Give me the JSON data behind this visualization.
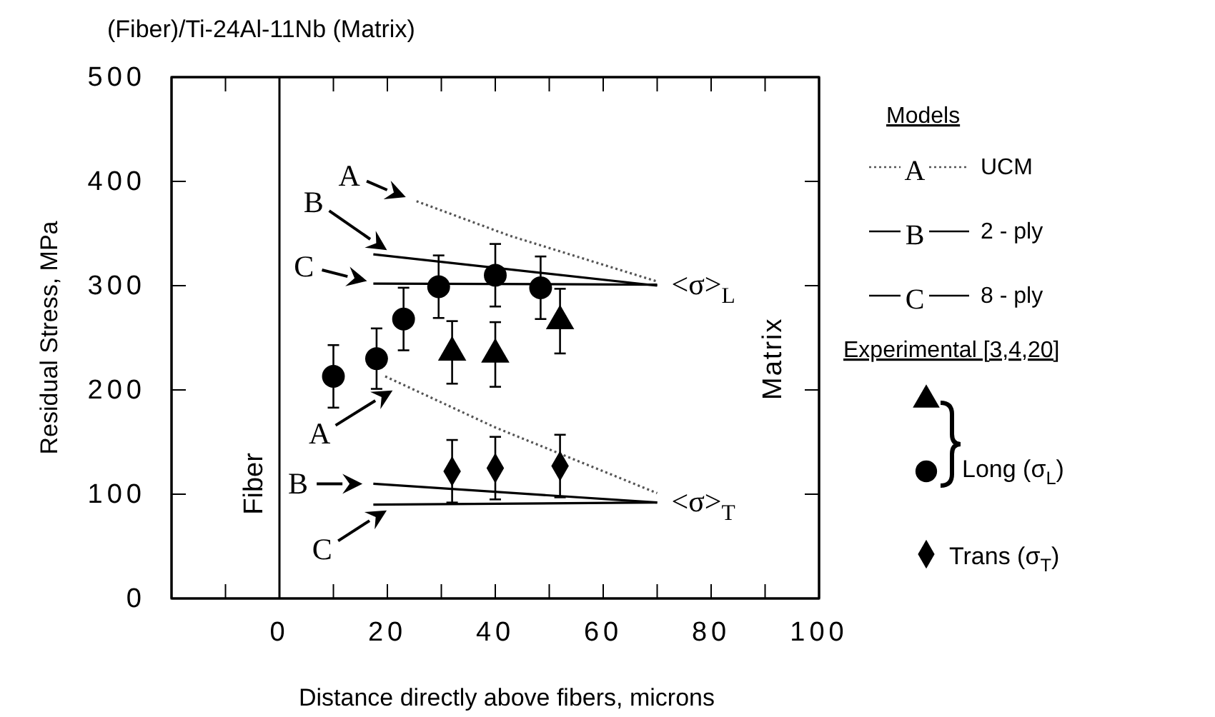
{
  "chart_data": {
    "type": "scatter",
    "title": "(Fiber)/Ti-24Al-11Nb  (Matrix)",
    "xlabel": "Distance directly above fibers, microns",
    "ylabel": "Residual Stress, MPa",
    "legend_title": "Models",
    "legend": "right",
    "xlim": [
      -20,
      100
    ],
    "xticks": [
      {
        "value": -10,
        "label": null
      },
      0,
      {
        "value": 10,
        "label": null
      },
      20,
      {
        "value": 30,
        "label": null
      },
      40,
      {
        "value": 50,
        "label": null
      },
      60,
      {
        "value": 70,
        "label": null
      },
      80,
      {
        "value": 90,
        "label": null
      },
      100
    ],
    "ylim": [
      0,
      500
    ],
    "yticks": [
      0,
      100,
      200,
      300,
      400,
      500
    ],
    "ref_lines": [
      {
        "axis": "x",
        "value": 0,
        "label": "Fiber",
        "color": "#000000"
      }
    ],
    "series": [
      {
        "type": "line",
        "name": "UCM",
        "color": "#555555",
        "line_style": "dotted",
        "x": [
          25.4,
          42.6,
          70
        ],
        "values": [
          381,
          348,
          304
        ]
      },
      {
        "type": "line",
        "name": "2 - ply",
        "color": "#000000",
        "line_style": "solid",
        "x": [
          17.4,
          70
        ],
        "values": [
          330,
          300
        ]
      },
      {
        "type": "line",
        "name": "8 - ply",
        "color": "#000000",
        "line_style": "solid",
        "x": [
          17.4,
          70
        ],
        "values": [
          302,
          301
        ]
      },
      {
        "type": "line",
        "color": "#555555",
        "line_style": "dotted",
        "x": [
          19.6,
          40,
          70
        ],
        "values": [
          213,
          164,
          101
        ]
      },
      {
        "type": "line",
        "color": "#000000",
        "line_style": "solid",
        "x": [
          17.4,
          70
        ],
        "values": [
          110,
          92
        ]
      },
      {
        "type": "line",
        "color": "#000000",
        "line_style": "solid",
        "x": [
          17.4,
          70
        ],
        "values": [
          90,
          92
        ]
      },
      {
        "color": "#000000",
        "marker": "triangle",
        "x": [
          32,
          40,
          52
        ],
        "values": [
          236,
          234,
          266
        ],
        "errors": [
          30,
          31,
          31
        ]
      },
      {
        "name": "Long (σ$_{L}$)",
        "color": "#000000",
        "marker": "circle",
        "x": [
          10,
          18,
          23,
          29.5,
          40,
          48.4
        ],
        "values": [
          213,
          230,
          268,
          299,
          310,
          298
        ],
        "errors": [
          30,
          29,
          30,
          30,
          30,
          30
        ]
      },
      {
        "name": "Trans (σ$_{T}$)",
        "color": "#000000",
        "marker": "diamond",
        "x": [
          32,
          40,
          52
        ],
        "values": [
          122,
          125,
          127
        ],
        "errors": [
          30,
          30,
          30
        ]
      }
    ],
    "annotations": [
      {
        "text": "A",
        "x": 25.4,
        "y": 381
      },
      {
        "text": "B",
        "x": 21.7,
        "y": 328
      },
      {
        "text": "C",
        "x": 18.3,
        "y": 302
      },
      {
        "text": "A",
        "x": 22.8,
        "y": 205
      },
      {
        "text": "B",
        "x": 17.5,
        "y": 110
      },
      {
        "text": "C",
        "x": 21.7,
        "y": 90
      },
      {
        "text": "<σ>$_{L}$",
        "x": 70,
        "y": 300
      },
      {
        "text": "<σ>$_{T}$",
        "x": 70,
        "y": 92
      },
      "Matrix",
      "Experimental  [3,4,20]"
    ]
  }
}
